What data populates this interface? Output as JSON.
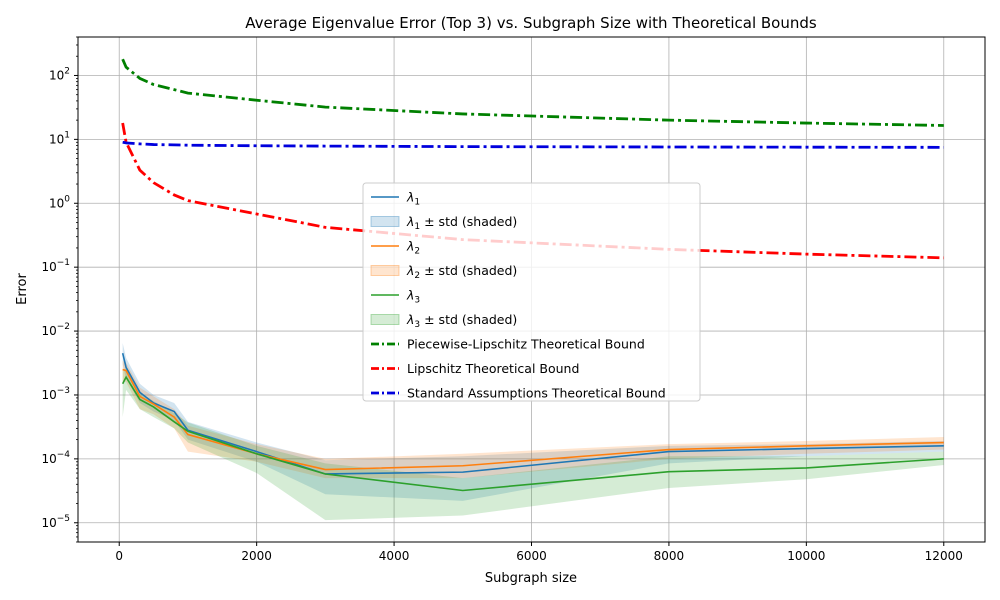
{
  "chart_data": {
    "type": "line",
    "title": "Average Eigenvalue Error (Top 3) vs. Subgraph Size with Theoretical Bounds",
    "xlabel": "Subgraph size",
    "ylabel": "Error",
    "xscale": "linear",
    "yscale": "log",
    "xlim": [
      -600,
      12600
    ],
    "ylim": [
      5e-06,
      400
    ],
    "grid": true,
    "legend_position": "center",
    "xticks": [
      0,
      2000,
      4000,
      6000,
      8000,
      10000,
      12000
    ],
    "xtick_labels": [
      "0",
      "2000",
      "4000",
      "6000",
      "8000",
      "10000",
      "12000"
    ],
    "yticks": [
      1e-05,
      0.0001,
      0.001,
      0.01,
      0.1,
      1,
      10,
      100
    ],
    "ytick_labels": [
      {
        "base": "10",
        "exp": "−5"
      },
      {
        "base": "10",
        "exp": "−4"
      },
      {
        "base": "10",
        "exp": "−3"
      },
      {
        "base": "10",
        "exp": "−2"
      },
      {
        "base": "10",
        "exp": "−1"
      },
      {
        "base": "10",
        "exp": "0"
      },
      {
        "base": "10",
        "exp": "1"
      },
      {
        "base": "10",
        "exp": "2"
      }
    ],
    "x": [
      50,
      100,
      300,
      500,
      800,
      1000,
      2000,
      3000,
      5000,
      8000,
      10000,
      12000
    ],
    "series": [
      {
        "name": "λ1",
        "legend_base": "λ",
        "legend_sub": "1",
        "color": "#1f77b4",
        "values": [
          0.0045,
          0.0027,
          0.0011,
          0.00075,
          0.00055,
          0.00028,
          0.00013,
          5.8e-05,
          6.2e-05,
          0.00013,
          0.000145,
          0.00016
        ],
        "std_low": [
          0.003,
          0.0018,
          0.00075,
          0.00055,
          0.0004,
          0.0002,
          9e-05,
          2.8e-05,
          2.2e-05,
          8.5e-05,
          0.00011,
          0.00013
        ],
        "std_high": [
          0.0065,
          0.0038,
          0.0015,
          0.001,
          0.00075,
          0.00038,
          0.00018,
          9.5e-05,
          0.00011,
          0.00016,
          0.00017,
          0.00019
        ]
      },
      {
        "name": "λ2",
        "legend_base": "λ",
        "legend_sub": "2",
        "color": "#ff7f0e",
        "values": [
          0.0025,
          0.0024,
          0.00095,
          0.00072,
          0.00045,
          0.00024,
          0.00012,
          6.8e-05,
          7.8e-05,
          0.00014,
          0.00016,
          0.00018
        ],
        "std_low": [
          0.0016,
          0.0016,
          0.0006,
          0.0005,
          0.0003,
          0.00013,
          9e-05,
          5e-05,
          5e-05,
          0.0001,
          0.00012,
          0.00014
        ],
        "std_high": [
          0.0034,
          0.0032,
          0.0013,
          0.00095,
          0.0006,
          0.00033,
          0.00017,
          0.0001,
          0.00012,
          0.00017,
          0.00019,
          0.00022
        ]
      },
      {
        "name": "λ3",
        "legend_base": "λ",
        "legend_sub": "3",
        "color": "#2ca02c",
        "values": [
          0.0015,
          0.0019,
          0.00085,
          0.00065,
          0.00038,
          0.00027,
          0.00012,
          5.8e-05,
          3.2e-05,
          6.3e-05,
          7.2e-05,
          0.0001
        ],
        "std_low": [
          0.00045,
          0.0012,
          0.0006,
          0.00045,
          0.0003,
          0.00018,
          6e-05,
          1.1e-05,
          1.3e-05,
          3.5e-05,
          4.8e-05,
          8e-05
        ],
        "std_high": [
          0.0025,
          0.0026,
          0.0011,
          0.0008,
          0.00052,
          0.00037,
          0.00016,
          8.5e-05,
          5e-05,
          0.00011,
          0.00011,
          0.00013
        ]
      }
    ],
    "bounds": [
      {
        "name": "Piecewise-Lipschitz Theoretical Bound",
        "color": "#008000",
        "x": [
          50,
          100,
          300,
          500,
          800,
          1000,
          2000,
          3000,
          5000,
          8000,
          10000,
          12000
        ],
        "values": [
          180,
          135,
          90,
          72,
          60,
          53,
          41,
          32,
          25,
          20,
          18,
          16.5
        ]
      },
      {
        "name": "Lipschitz Theoretical Bound",
        "color": "#ff0000",
        "x": [
          50,
          100,
          300,
          500,
          800,
          1000,
          2000,
          3000,
          5000,
          8000,
          10000,
          12000
        ],
        "values": [
          18,
          9,
          3.3,
          2.1,
          1.35,
          1.1,
          0.68,
          0.42,
          0.27,
          0.19,
          0.16,
          0.14
        ]
      },
      {
        "name": "Standard Assumptions Theoretical Bound",
        "color": "#0000dd",
        "x": [
          50,
          100,
          300,
          500,
          800,
          1000,
          2000,
          3000,
          5000,
          8000,
          10000,
          12000
        ],
        "values": [
          9.0,
          8.8,
          8.5,
          8.3,
          8.2,
          8.1,
          7.95,
          7.85,
          7.7,
          7.6,
          7.55,
          7.5
        ]
      }
    ],
    "legend_entries": [
      {
        "kind": "line",
        "base": "λ",
        "sub": "1",
        "rest": "",
        "color": "#1f77b4"
      },
      {
        "kind": "patch",
        "base": "λ",
        "sub": "1",
        "rest": " ± std (shaded)",
        "color": "#1f77b4"
      },
      {
        "kind": "line",
        "base": "λ",
        "sub": "2",
        "rest": "",
        "color": "#ff7f0e"
      },
      {
        "kind": "patch",
        "base": "λ",
        "sub": "2",
        "rest": " ± std (shaded)",
        "color": "#ff7f0e"
      },
      {
        "kind": "line",
        "base": "λ",
        "sub": "3",
        "rest": "",
        "color": "#2ca02c"
      },
      {
        "kind": "patch",
        "base": "λ",
        "sub": "3",
        "rest": " ± std (shaded)",
        "color": "#2ca02c"
      },
      {
        "kind": "dashline",
        "base": "",
        "sub": "",
        "rest": "Piecewise-Lipschitz Theoretical Bound",
        "color": "#008000"
      },
      {
        "kind": "dashline",
        "base": "",
        "sub": "",
        "rest": "Lipschitz Theoretical Bound",
        "color": "#ff0000"
      },
      {
        "kind": "dashline",
        "base": "",
        "sub": "",
        "rest": "Standard Assumptions Theoretical Bound",
        "color": "#0000dd"
      }
    ]
  }
}
